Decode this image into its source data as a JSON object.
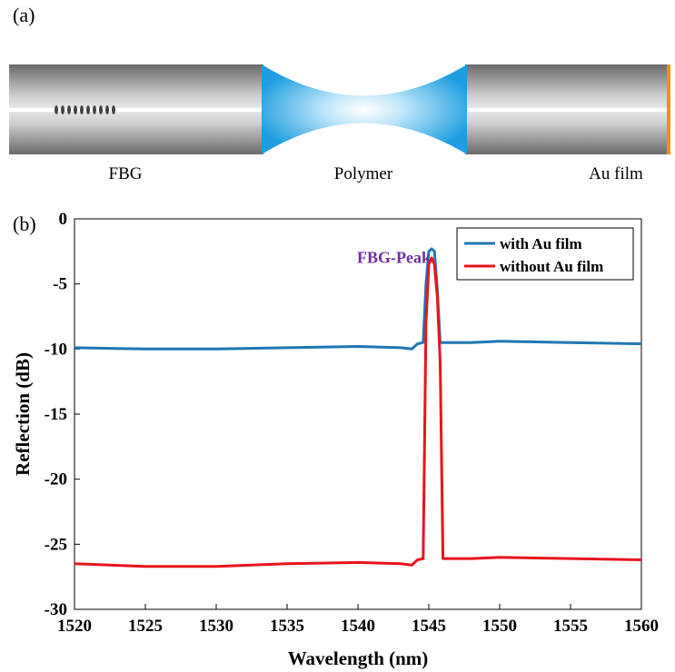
{
  "panel_a": {
    "label": "(a)",
    "labels": {
      "fbg": "FBG",
      "polymer": "Polymer",
      "au_film": "Au film"
    },
    "colors": {
      "fiber": "#8c8c8c",
      "polymer": "#2aa4e0",
      "au": "#f0901a"
    }
  },
  "panel_b": {
    "label": "(b)"
  },
  "chart_data": {
    "type": "line",
    "title": "",
    "xlabel": "Wavelength (nm)",
    "ylabel": "Reflection (dB)",
    "xlim": [
      1520,
      1560
    ],
    "ylim": [
      -30,
      0
    ],
    "xticks": [
      1520,
      1525,
      1530,
      1535,
      1540,
      1545,
      1550,
      1555,
      1560
    ],
    "yticks": [
      0,
      -5,
      -10,
      -15,
      -20,
      -25,
      -30
    ],
    "grid": false,
    "legend_position": "top-right",
    "annotation": {
      "text": "FBG-Peak",
      "color": "#7030a0",
      "x": 1542.5,
      "y": -2
    },
    "series": [
      {
        "name": "with Au film",
        "color": "#1f77b4",
        "x": [
          1520,
          1525,
          1530,
          1535,
          1540,
          1543,
          1543.8,
          1544.2,
          1544.6,
          1544.8,
          1545.0,
          1545.2,
          1545.4,
          1545.6,
          1545.8,
          1546.0,
          1548,
          1550,
          1555,
          1560
        ],
        "y": [
          -9.9,
          -10.0,
          -10.0,
          -9.9,
          -9.8,
          -9.9,
          -10.0,
          -9.6,
          -9.5,
          -5.0,
          -2.5,
          -2.3,
          -2.5,
          -5.5,
          -9.5,
          -9.5,
          -9.5,
          -9.4,
          -9.5,
          -9.6
        ]
      },
      {
        "name": "without Au film",
        "color": "#e8141c",
        "x": [
          1520,
          1525,
          1530,
          1535,
          1540,
          1543,
          1543.8,
          1544.2,
          1544.6,
          1544.8,
          1545.0,
          1545.2,
          1545.4,
          1545.6,
          1545.8,
          1546.0,
          1548,
          1550,
          1555,
          1560
        ],
        "y": [
          -26.5,
          -26.7,
          -26.7,
          -26.5,
          -26.4,
          -26.5,
          -26.6,
          -26.2,
          -26.1,
          -8.0,
          -3.5,
          -3.0,
          -3.5,
          -6.0,
          -11.0,
          -26.1,
          -26.1,
          -26.0,
          -26.1,
          -26.2
        ]
      }
    ]
  }
}
